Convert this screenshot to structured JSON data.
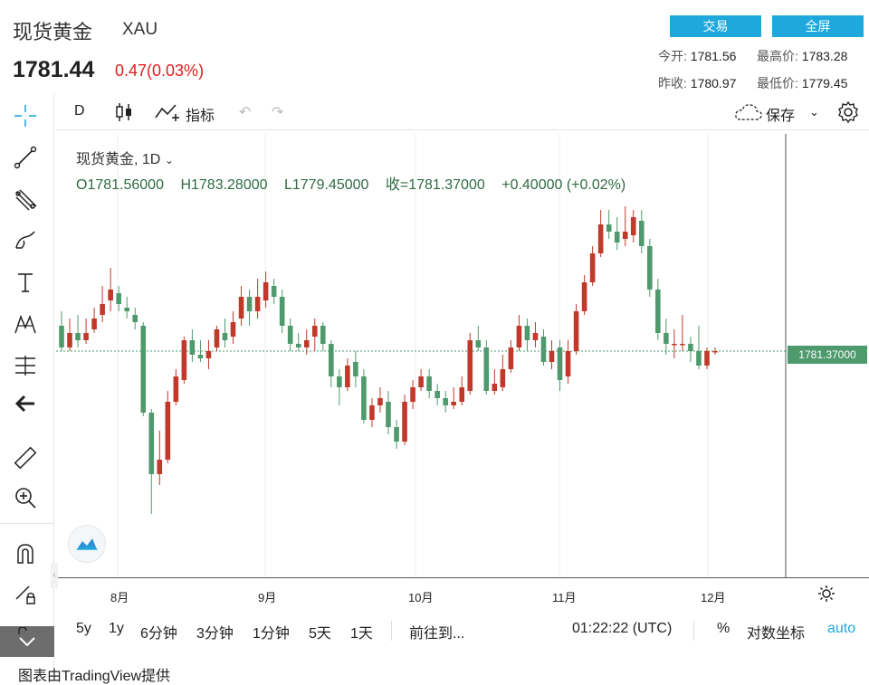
{
  "header": {
    "title": "现货黄金",
    "symbol": "XAU",
    "price": "1781.44",
    "change": "0.47(0.03%)",
    "trade_button": "交易",
    "fullscreen_button": "全屏",
    "open_label": "今开:",
    "open_value": "1781.56",
    "high_label": "最高价:",
    "high_value": "1783.28",
    "prev_close_label": "昨收:",
    "prev_close_value": "1780.97",
    "low_label": "最低价:",
    "low_value": "1779.45"
  },
  "toolbar": {
    "interval": "D",
    "indicators": "指标",
    "save": "保存"
  },
  "legend": {
    "title": "现货黄金, 1D",
    "open": "O1781.56000",
    "high": "H1783.28000",
    "low": "L1779.45000",
    "close": "收=1781.37000",
    "change": "+0.40000 (+0.02%)"
  },
  "price_tag": "1781.37000",
  "xaxis": {
    "labels": [
      "8月",
      "9月",
      "10月",
      "11月",
      "12月"
    ]
  },
  "bottombar": {
    "ranges": [
      "5y",
      "1y",
      "6分钟",
      "3分钟",
      "1分钟",
      "5天",
      "1天"
    ],
    "goto": "前往到...",
    "time": "01:22:22 (UTC)",
    "percent": "%",
    "log_scale": "对数坐标",
    "auto": "auto"
  },
  "credit": "图表由TradingView提供",
  "colors": {
    "up": "#c0392b",
    "down": "#4e9a6d",
    "accent": "#1ea8dc"
  },
  "chart_data": {
    "type": "candlestick",
    "title": "现货黄金, 1D",
    "x_labels": [
      "8月",
      "9月",
      "10月",
      "11月",
      "12月"
    ],
    "current_price": 1781.37,
    "ohlc_relative": [
      [
        0.62,
        0.56,
        0.66,
        0.55
      ],
      [
        0.56,
        0.6,
        0.64,
        0.55
      ],
      [
        0.6,
        0.58,
        0.65,
        0.56
      ],
      [
        0.58,
        0.6,
        0.64,
        0.57
      ],
      [
        0.61,
        0.64,
        0.67,
        0.6
      ],
      [
        0.65,
        0.68,
        0.73,
        0.63
      ],
      [
        0.69,
        0.72,
        0.78,
        0.66
      ],
      [
        0.71,
        0.68,
        0.73,
        0.66
      ],
      [
        0.67,
        0.66,
        0.7,
        0.64
      ],
      [
        0.65,
        0.63,
        0.67,
        0.61
      ],
      [
        0.62,
        0.38,
        0.63,
        0.37
      ],
      [
        0.38,
        0.21,
        0.39,
        0.1
      ],
      [
        0.21,
        0.25,
        0.33,
        0.18
      ],
      [
        0.25,
        0.41,
        0.44,
        0.24
      ],
      [
        0.41,
        0.48,
        0.5,
        0.4
      ],
      [
        0.47,
        0.58,
        0.59,
        0.46
      ],
      [
        0.58,
        0.54,
        0.61,
        0.52
      ],
      [
        0.54,
        0.53,
        0.58,
        0.52
      ],
      [
        0.53,
        0.55,
        0.58,
        0.5
      ],
      [
        0.56,
        0.61,
        0.62,
        0.55
      ],
      [
        0.6,
        0.58,
        0.64,
        0.56
      ],
      [
        0.59,
        0.63,
        0.66,
        0.57
      ],
      [
        0.64,
        0.7,
        0.73,
        0.62
      ],
      [
        0.7,
        0.66,
        0.72,
        0.62
      ],
      [
        0.66,
        0.7,
        0.75,
        0.64
      ],
      [
        0.69,
        0.74,
        0.77,
        0.67
      ],
      [
        0.73,
        0.7,
        0.75,
        0.68
      ],
      [
        0.7,
        0.62,
        0.72,
        0.6
      ],
      [
        0.62,
        0.57,
        0.64,
        0.55
      ],
      [
        0.57,
        0.56,
        0.6,
        0.55
      ],
      [
        0.56,
        0.58,
        0.61,
        0.54
      ],
      [
        0.59,
        0.62,
        0.64,
        0.55
      ],
      [
        0.62,
        0.57,
        0.63,
        0.55
      ],
      [
        0.57,
        0.48,
        0.58,
        0.45
      ],
      [
        0.48,
        0.45,
        0.5,
        0.4
      ],
      [
        0.45,
        0.51,
        0.53,
        0.44
      ],
      [
        0.52,
        0.48,
        0.55,
        0.45
      ],
      [
        0.48,
        0.36,
        0.5,
        0.35
      ],
      [
        0.36,
        0.4,
        0.42,
        0.34
      ],
      [
        0.4,
        0.42,
        0.45,
        0.38
      ],
      [
        0.41,
        0.34,
        0.44,
        0.32
      ],
      [
        0.34,
        0.3,
        0.36,
        0.28
      ],
      [
        0.3,
        0.41,
        0.43,
        0.29
      ],
      [
        0.41,
        0.45,
        0.47,
        0.39
      ],
      [
        0.45,
        0.48,
        0.5,
        0.44
      ],
      [
        0.48,
        0.44,
        0.5,
        0.42
      ],
      [
        0.44,
        0.42,
        0.46,
        0.4
      ],
      [
        0.42,
        0.4,
        0.44,
        0.38
      ],
      [
        0.4,
        0.41,
        0.45,
        0.39
      ],
      [
        0.41,
        0.45,
        0.48,
        0.4
      ],
      [
        0.44,
        0.58,
        0.6,
        0.43
      ],
      [
        0.58,
        0.56,
        0.62,
        0.55
      ],
      [
        0.56,
        0.44,
        0.58,
        0.43
      ],
      [
        0.44,
        0.46,
        0.5,
        0.43
      ],
      [
        0.45,
        0.5,
        0.54,
        0.44
      ],
      [
        0.5,
        0.56,
        0.58,
        0.49
      ],
      [
        0.56,
        0.62,
        0.65,
        0.55
      ],
      [
        0.62,
        0.58,
        0.64,
        0.55
      ],
      [
        0.58,
        0.6,
        0.63,
        0.56
      ],
      [
        0.59,
        0.52,
        0.61,
        0.51
      ],
      [
        0.52,
        0.55,
        0.58,
        0.5
      ],
      [
        0.56,
        0.47,
        0.58,
        0.44
      ],
      [
        0.48,
        0.55,
        0.58,
        0.46
      ],
      [
        0.55,
        0.66,
        0.68,
        0.54
      ],
      [
        0.66,
        0.74,
        0.76,
        0.65
      ],
      [
        0.74,
        0.82,
        0.84,
        0.73
      ],
      [
        0.82,
        0.9,
        0.94,
        0.81
      ],
      [
        0.9,
        0.88,
        0.94,
        0.86
      ],
      [
        0.88,
        0.85,
        0.92,
        0.83
      ],
      [
        0.86,
        0.88,
        0.95,
        0.84
      ],
      [
        0.87,
        0.92,
        0.94,
        0.85
      ],
      [
        0.91,
        0.84,
        0.94,
        0.82
      ],
      [
        0.84,
        0.72,
        0.86,
        0.7
      ],
      [
        0.72,
        0.6,
        0.75,
        0.58
      ],
      [
        0.6,
        0.57,
        0.64,
        0.54
      ],
      [
        0.57,
        0.57,
        0.61,
        0.53
      ],
      [
        0.57,
        0.57,
        0.65,
        0.55
      ],
      [
        0.57,
        0.55,
        0.59,
        0.52
      ],
      [
        0.55,
        0.51,
        0.62,
        0.5
      ],
      [
        0.51,
        0.55,
        0.56,
        0.5
      ],
      [
        0.55,
        0.55,
        0.56,
        0.54
      ]
    ]
  }
}
